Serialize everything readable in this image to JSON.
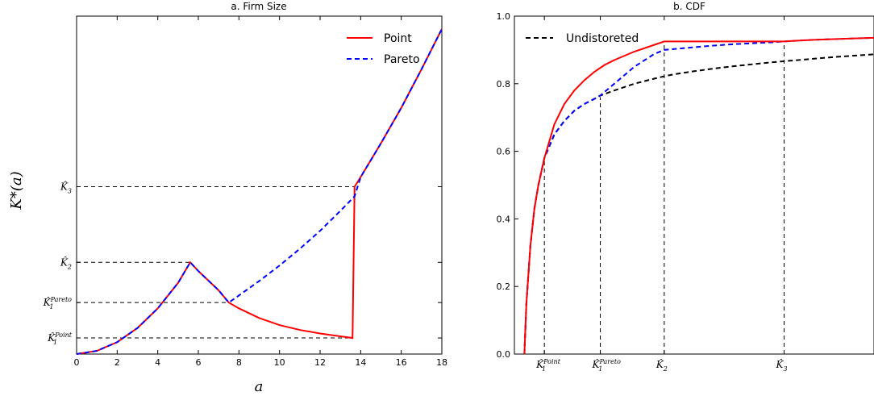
{
  "chart_data": [
    {
      "type": "line",
      "title": "a. Firm Size",
      "xlabel": "a",
      "ylabel": "K*(a)",
      "xlim": [
        0,
        18
      ],
      "ylim": [
        0,
        10.5
      ],
      "xticks": [
        0,
        2,
        4,
        6,
        8,
        10,
        12,
        14,
        16,
        18
      ],
      "yticks": [
        {
          "value": 0.5,
          "label": "K̂",
          "sub": "1",
          "sup": "Point"
        },
        {
          "value": 1.6,
          "label": "K̂",
          "sub": "1",
          "sup": "Pareto"
        },
        {
          "value": 2.85,
          "label": "K̂",
          "sub": "2",
          "sup": ""
        },
        {
          "value": 5.2,
          "label": "K̂",
          "sub": "3",
          "sup": ""
        }
      ],
      "guides": [
        {
          "y": 0.5,
          "x_end": 13.6
        },
        {
          "y": 1.6,
          "x_end": 7.5
        },
        {
          "y": 2.85,
          "x_end": 5.6
        },
        {
          "y": 5.2,
          "x_end": 13.7
        }
      ],
      "legend": "top-right",
      "series": [
        {
          "name": "Point",
          "color": "#ff0000",
          "style": "solid",
          "x": [
            0,
            1,
            2,
            3,
            4,
            5,
            5.6,
            6,
            7,
            7.5,
            8,
            9,
            10,
            11,
            12,
            13,
            13.6,
            13.7,
            14,
            15,
            16,
            17,
            18
          ],
          "y": [
            0,
            0.1,
            0.37,
            0.81,
            1.42,
            2.21,
            2.85,
            2.58,
            1.98,
            1.6,
            1.42,
            1.12,
            0.9,
            0.75,
            0.64,
            0.55,
            0.5,
            5.2,
            5.5,
            6.55,
            7.65,
            8.85,
            10.1
          ]
        },
        {
          "name": "Pareto",
          "color": "#0000ff",
          "style": "dashed",
          "x": [
            0,
            1,
            2,
            3,
            4,
            5,
            5.6,
            6,
            7,
            7.5,
            8,
            9,
            10,
            11,
            12,
            13,
            13.7,
            14,
            15,
            16,
            17,
            18
          ],
          "y": [
            0,
            0.1,
            0.37,
            0.81,
            1.42,
            2.21,
            2.85,
            2.58,
            1.98,
            1.6,
            1.82,
            2.27,
            2.75,
            3.27,
            3.83,
            4.45,
            4.9,
            5.5,
            6.55,
            7.65,
            8.85,
            10.1
          ]
        }
      ]
    },
    {
      "type": "line",
      "title": "b. CDF",
      "xlabel": "",
      "ylabel": "",
      "xlim": [
        0,
        18
      ],
      "ylim": [
        0,
        1.0
      ],
      "yticks": [
        0.0,
        0.2,
        0.4,
        0.6,
        0.8,
        1.0
      ],
      "xticks": [
        {
          "value": 1.5,
          "label": "K̂",
          "sub": "1",
          "sup": "Point"
        },
        {
          "value": 4.3,
          "label": "K̂",
          "sub": "1",
          "sup": "Pareto"
        },
        {
          "value": 7.5,
          "label": "K̂",
          "sub": "2",
          "sup": ""
        },
        {
          "value": 13.5,
          "label": "K̂",
          "sub": "3",
          "sup": ""
        }
      ],
      "guides": [
        {
          "x": 1.5,
          "y_end": 0.58
        },
        {
          "x": 4.3,
          "y_end": 0.76
        },
        {
          "x": 7.5,
          "y_end": 0.925
        },
        {
          "x": 13.5,
          "y_end": 0.925
        }
      ],
      "legend": "top-left",
      "series": [
        {
          "name": "Undistoreted",
          "color": "#000000",
          "style": "dashed",
          "x": [
            0.5,
            0.6,
            0.8,
            1.0,
            1.2,
            1.5,
            2.0,
            2.5,
            3.0,
            3.5,
            4.0,
            4.3,
            5,
            6,
            7,
            7.5,
            8,
            9,
            10,
            11,
            12,
            13,
            14,
            15,
            16,
            17,
            18
          ],
          "y": [
            0.0,
            0.15,
            0.32,
            0.43,
            0.5,
            0.58,
            0.65,
            0.69,
            0.72,
            0.74,
            0.755,
            0.765,
            0.78,
            0.8,
            0.815,
            0.822,
            0.828,
            0.837,
            0.845,
            0.852,
            0.858,
            0.864,
            0.869,
            0.874,
            0.879,
            0.883,
            0.887
          ]
        },
        {
          "name": "",
          "color": "#0000ff",
          "style": "dashed",
          "x": [
            0.5,
            0.6,
            0.8,
            1.0,
            1.2,
            1.5,
            2.0,
            2.5,
            3.0,
            3.5,
            4.0,
            4.3,
            5,
            6,
            7,
            7.5,
            9,
            10,
            11,
            12,
            13,
            13.5,
            14,
            15,
            16,
            17,
            18
          ],
          "y": [
            0.0,
            0.15,
            0.32,
            0.43,
            0.5,
            0.58,
            0.65,
            0.69,
            0.72,
            0.74,
            0.755,
            0.765,
            0.8,
            0.85,
            0.888,
            0.9,
            0.908,
            0.913,
            0.917,
            0.92,
            0.923,
            0.925,
            0.927,
            0.93,
            0.932,
            0.934,
            0.936
          ]
        },
        {
          "name": "",
          "color": "#ff0000",
          "style": "solid",
          "x": [
            0.5,
            0.6,
            0.8,
            1.0,
            1.2,
            1.5,
            2.0,
            2.5,
            3.0,
            3.5,
            4.0,
            4.5,
            5,
            6,
            7,
            7.5,
            9,
            10,
            11,
            12,
            13,
            13.5,
            14,
            15,
            16,
            17,
            18
          ],
          "y": [
            0.0,
            0.15,
            0.32,
            0.43,
            0.5,
            0.58,
            0.68,
            0.74,
            0.78,
            0.81,
            0.835,
            0.855,
            0.87,
            0.895,
            0.915,
            0.925,
            0.925,
            0.925,
            0.925,
            0.925,
            0.925,
            0.925,
            0.927,
            0.93,
            0.932,
            0.934,
            0.936
          ]
        }
      ]
    }
  ]
}
